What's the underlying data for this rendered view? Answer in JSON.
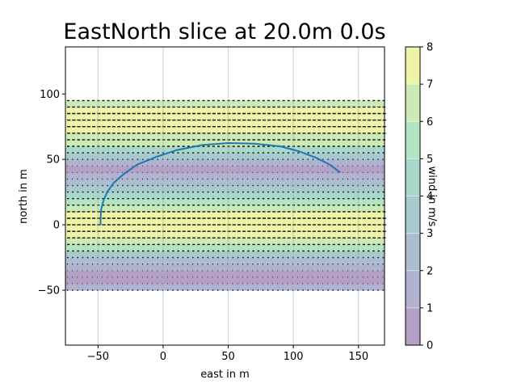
{
  "chart_data": {
    "type": "heatmap",
    "title": "EastNorth slice at 20.0m 0.0s",
    "xlabel": "east in m",
    "ylabel": "north in m",
    "xlim": [
      -75,
      170
    ],
    "ylim": [
      -92,
      136
    ],
    "x_ticks": [
      -50,
      0,
      50,
      100,
      150
    ],
    "x_tick_labels": [
      "−50",
      "0",
      "50",
      "100",
      "150"
    ],
    "y_ticks": [
      -50,
      0,
      50,
      100
    ],
    "y_tick_labels": [
      "−50",
      "0",
      "50",
      "100"
    ],
    "grid": "vertical",
    "field_extent": {
      "east": [
        -75,
        170
      ],
      "north": [
        -50,
        95
      ]
    },
    "colorbar": {
      "label": "wind in m/s",
      "levels": [
        0,
        1,
        2,
        3,
        4,
        5,
        6,
        7,
        8
      ],
      "tick_labels": [
        "0",
        "1",
        "2",
        "3",
        "4",
        "5",
        "6",
        "7",
        "8"
      ],
      "colors": [
        "#b3a0c4",
        "#b0b2d0",
        "#acbdcf",
        "#a8cace",
        "#a7d8ca",
        "#b3e4c2",
        "#cde9b5",
        "#edf3a7"
      ]
    },
    "wind_band_levels": [
      {
        "north": -50,
        "speed": 2.5
      },
      {
        "north": -45,
        "speed": 1.2
      },
      {
        "north": -40,
        "speed": 0.4
      },
      {
        "north": -35,
        "speed": 0.9
      },
      {
        "north": -30,
        "speed": 2.0
      },
      {
        "north": -25,
        "speed": 3.0
      },
      {
        "north": -20,
        "speed": 4.5
      },
      {
        "north": -15,
        "speed": 6.0
      },
      {
        "north": -10,
        "speed": 7.0
      },
      {
        "north": -5,
        "speed": 7.6
      },
      {
        "north": 0,
        "speed": 7.8
      },
      {
        "north": 5,
        "speed": 7.6
      },
      {
        "north": 10,
        "speed": 6.8
      },
      {
        "north": 15,
        "speed": 5.5
      },
      {
        "north": 20,
        "speed": 4.5
      },
      {
        "north": 25,
        "speed": 3.5
      },
      {
        "north": 30,
        "speed": 2.5
      },
      {
        "north": 35,
        "speed": 1.5
      },
      {
        "north": 40,
        "speed": 0.5
      },
      {
        "north": 45,
        "speed": 1.2
      },
      {
        "north": 50,
        "speed": 2.5
      },
      {
        "north": 55,
        "speed": 4.2
      },
      {
        "north": 60,
        "speed": 5.5
      },
      {
        "north": 65,
        "speed": 6.5
      },
      {
        "north": 70,
        "speed": 7.2
      },
      {
        "north": 75,
        "speed": 7.6
      },
      {
        "north": 80,
        "speed": 7.8
      },
      {
        "north": 85,
        "speed": 7.5
      },
      {
        "north": 90,
        "speed": 6.5
      },
      {
        "north": 95,
        "speed": 5.5
      }
    ],
    "trajectory": {
      "color": "#1f77b4",
      "points": [
        [
          -48,
          0
        ],
        [
          -48,
          5
        ],
        [
          -47.5,
          12
        ],
        [
          -46,
          18
        ],
        [
          -43,
          25
        ],
        [
          -38,
          32
        ],
        [
          -30,
          39
        ],
        [
          -20,
          46
        ],
        [
          -5,
          52
        ],
        [
          10,
          57
        ],
        [
          30,
          61
        ],
        [
          50,
          62.5
        ],
        [
          70,
          62
        ],
        [
          90,
          60
        ],
        [
          105,
          56
        ],
        [
          118,
          51
        ],
        [
          128,
          46
        ],
        [
          136,
          40
        ]
      ]
    }
  }
}
